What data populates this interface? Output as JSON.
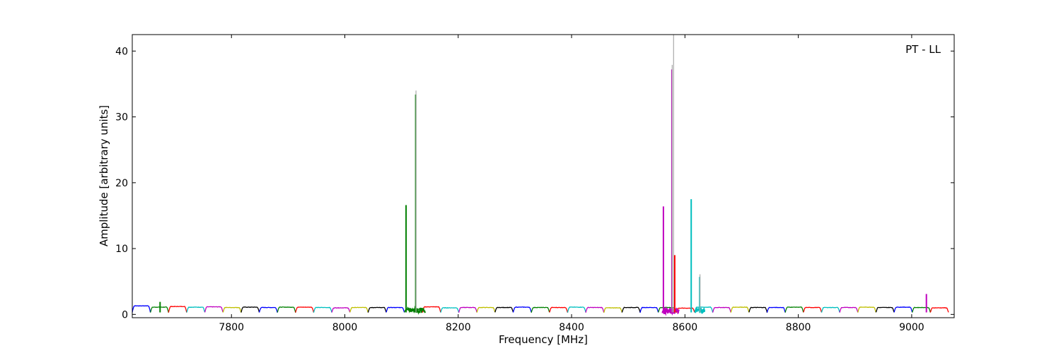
{
  "chart_data": {
    "type": "line",
    "annotation": "PT - LL",
    "xlabel": "Frequency [MHz]",
    "ylabel": "Amplitude [arbitrary units]",
    "xlim": [
      7625,
      9075
    ],
    "ylim": [
      -0.5,
      42.5
    ],
    "xticks": [
      7800,
      8000,
      8200,
      8400,
      8600,
      8800,
      9000
    ],
    "yticks": [
      0,
      10,
      20,
      30,
      40
    ],
    "grid": false,
    "legend": "none",
    "subband_width_mhz": 32,
    "subband_start_mhz": 7625,
    "baseline_shape": "each 32 MHz subband: amplitude rises from ~0.3 at the edges to ~1.1 across the flat top",
    "series_colors": [
      "#0000ff",
      "#008000",
      "#ff0000",
      "#00bfbf",
      "#bf00bf",
      "#bfbf00",
      "#000000"
    ],
    "subband_levels": [
      1.3,
      1.1,
      1.2,
      1.1,
      1.15,
      1.05,
      1.1,
      1.05,
      1.1,
      1.1,
      1.05,
      1.0,
      1.05,
      1.05,
      1.05,
      0.8,
      1.15,
      1.0,
      1.05,
      1.05,
      1.05,
      1.1,
      1.05,
      1.05,
      1.1,
      1.05,
      1.0,
      1.05,
      1.05,
      1.05,
      0.95,
      1.1,
      1.05,
      1.1,
      1.05,
      1.05,
      1.1,
      1.05,
      1.05,
      1.05,
      1.1,
      1.05,
      1.1,
      1.05,
      1.0
    ],
    "peaks": [
      {
        "x": 7674,
        "y": 1.9,
        "color": "#008000"
      },
      {
        "x": 8108,
        "y": 16.6,
        "color": "#008000"
      },
      {
        "x": 8125,
        "y": 33.4,
        "color": "#008000"
      },
      {
        "x": 8125.5,
        "y": 34.0,
        "color": "#aaaaaa"
      },
      {
        "x": 8562,
        "y": 16.4,
        "color": "#bf00bf"
      },
      {
        "x": 8577,
        "y": 37.2,
        "color": "#bf00bf"
      },
      {
        "x": 8577.5,
        "y": 37.9,
        "color": "#aaaaaa"
      },
      {
        "x": 8580,
        "y": 42.5,
        "color": "#aaaaaa"
      },
      {
        "x": 8582,
        "y": 9.0,
        "color": "#ff0000"
      },
      {
        "x": 8611,
        "y": 17.5,
        "color": "#00bfbf"
      },
      {
        "x": 8626,
        "y": 5.7,
        "color": "#00bfbf"
      },
      {
        "x": 8626.5,
        "y": 6.1,
        "color": "#aaaaaa"
      },
      {
        "x": 9026,
        "y": 3.1,
        "color": "#bf00bf"
      }
    ],
    "noisy_regions": [
      {
        "x0": 8110,
        "x1": 8142,
        "color": "#008000",
        "y": 0.6
      },
      {
        "x0": 8560,
        "x1": 8590,
        "color": "#bf00bf",
        "y": 0.5
      },
      {
        "x0": 8618,
        "x1": 8636,
        "color": "#00bfbf",
        "y": 0.6
      }
    ]
  }
}
